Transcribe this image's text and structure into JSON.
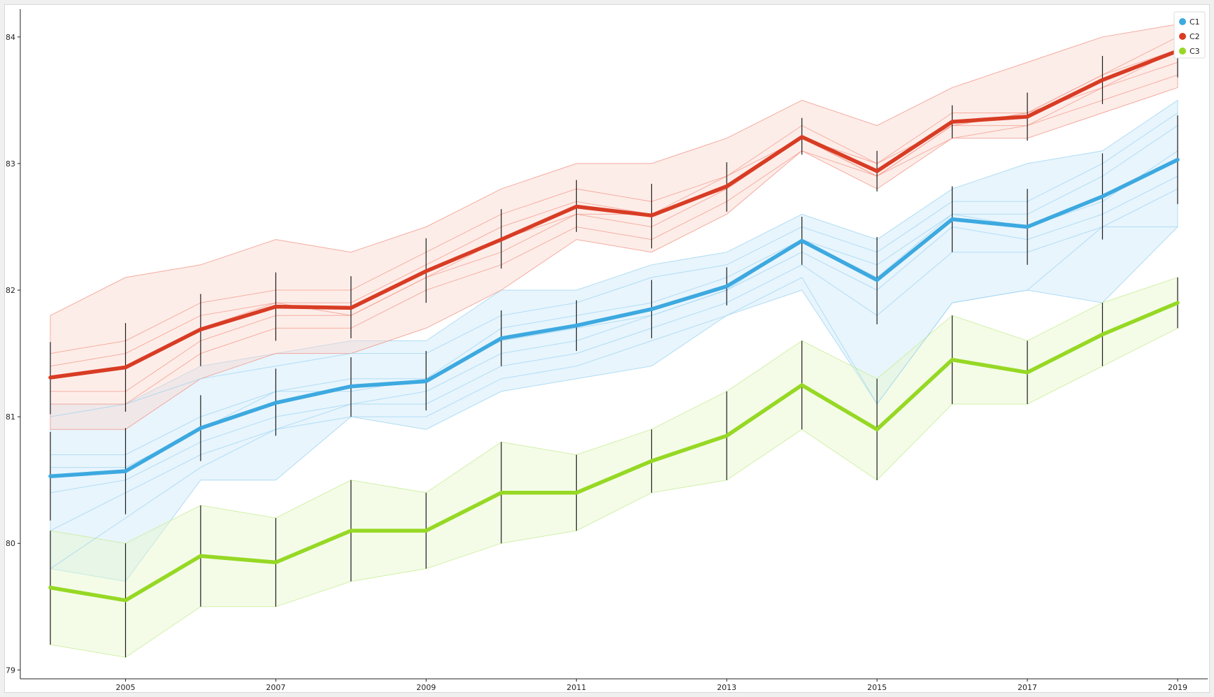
{
  "chart_data": {
    "type": "line",
    "x": [
      2004,
      2005,
      2006,
      2007,
      2008,
      2009,
      2010,
      2011,
      2012,
      2013,
      2014,
      2015,
      2016,
      2017,
      2018,
      2019
    ],
    "xticks": [
      2005,
      2007,
      2009,
      2011,
      2013,
      2015,
      2017,
      2019
    ],
    "xtick_labels": [
      "2005",
      "2007",
      "2009",
      "2011",
      "2013",
      "2015",
      "2017",
      "2019"
    ],
    "yticks": [
      79,
      80,
      81,
      82,
      83,
      84
    ],
    "ytick_labels": [
      "79",
      "80",
      "81",
      "82",
      "83",
      "84"
    ],
    "xlim": [
      2003.6,
      2019.4
    ],
    "ylim": [
      78.93,
      84.22
    ],
    "grid": false,
    "legend_position": "top-right",
    "series": [
      {
        "name": "C1",
        "color": "#3da9e0",
        "fill": "#cde9fa",
        "thin_color": "#9fd4f0",
        "values": [
          80.53,
          80.57,
          80.91,
          81.11,
          81.24,
          81.28,
          81.62,
          81.72,
          81.85,
          82.03,
          82.39,
          82.08,
          82.56,
          82.5,
          82.74,
          83.03
        ],
        "err_low": [
          80.18,
          80.23,
          80.65,
          80.85,
          81.0,
          81.05,
          81.4,
          81.52,
          81.62,
          81.88,
          82.2,
          81.73,
          82.3,
          82.2,
          82.4,
          82.68
        ],
        "err_high": [
          80.88,
          80.91,
          81.17,
          81.38,
          81.47,
          81.52,
          81.84,
          81.92,
          82.08,
          82.18,
          82.58,
          82.42,
          82.82,
          82.8,
          83.08,
          83.38
        ],
        "band_low": [
          79.8,
          79.7,
          80.5,
          80.5,
          81.0,
          80.9,
          81.2,
          81.3,
          81.4,
          81.8,
          82.0,
          81.1,
          81.9,
          82.0,
          81.9,
          82.5
        ],
        "band_high": [
          81.1,
          81.1,
          81.4,
          81.5,
          81.6,
          81.6,
          82.0,
          82.0,
          82.2,
          82.3,
          82.6,
          82.4,
          82.8,
          83.0,
          83.1,
          83.5
        ],
        "members": [
          [
            80.7,
            80.7,
            81.0,
            81.2,
            81.3,
            81.3,
            81.7,
            81.8,
            81.9,
            82.1,
            82.4,
            82.1,
            82.6,
            82.6,
            82.9,
            83.3
          ],
          [
            80.4,
            80.5,
            80.8,
            81.0,
            81.1,
            81.2,
            81.5,
            81.6,
            81.8,
            82.0,
            82.3,
            82.0,
            82.5,
            82.4,
            82.6,
            82.9
          ],
          [
            81.0,
            81.1,
            81.3,
            81.4,
            81.5,
            81.5,
            81.8,
            81.9,
            82.1,
            82.2,
            82.5,
            82.3,
            82.7,
            82.7,
            83.0,
            83.4
          ],
          [
            80.1,
            80.4,
            80.7,
            80.9,
            81.1,
            81.1,
            81.4,
            81.5,
            81.7,
            81.9,
            82.2,
            81.8,
            82.3,
            82.3,
            82.5,
            82.8
          ],
          [
            80.6,
            80.6,
            80.9,
            81.2,
            81.2,
            81.3,
            81.6,
            81.7,
            81.8,
            82.0,
            82.4,
            82.2,
            82.6,
            82.5,
            82.7,
            83.1
          ],
          [
            79.8,
            80.2,
            80.6,
            80.9,
            81.0,
            81.0,
            81.3,
            81.4,
            81.6,
            81.8,
            82.1,
            81.1,
            81.9,
            82.0,
            82.5,
            82.5
          ]
        ]
      },
      {
        "name": "C2",
        "color": "#d83c24",
        "fill": "#fbd6cf",
        "thin_color": "#f1998a",
        "values": [
          81.31,
          81.39,
          81.69,
          81.87,
          81.86,
          82.15,
          82.4,
          82.66,
          82.59,
          82.82,
          83.21,
          82.94,
          83.33,
          83.37,
          83.66,
          83.89
        ],
        "err_low": [
          81.02,
          81.04,
          81.4,
          81.6,
          81.62,
          81.9,
          82.17,
          82.46,
          82.33,
          82.62,
          83.07,
          82.78,
          83.2,
          83.18,
          83.47,
          83.68
        ],
        "err_high": [
          81.59,
          81.74,
          81.97,
          82.14,
          82.11,
          82.41,
          82.64,
          82.87,
          82.84,
          83.01,
          83.36,
          83.1,
          83.46,
          83.56,
          83.85,
          84.06
        ],
        "band_low": [
          80.9,
          80.9,
          81.3,
          81.5,
          81.5,
          81.7,
          82.0,
          82.4,
          82.3,
          82.6,
          83.1,
          82.8,
          83.2,
          83.2,
          83.4,
          83.6
        ],
        "band_high": [
          81.8,
          82.1,
          82.2,
          82.4,
          82.3,
          82.5,
          82.8,
          83.0,
          83.0,
          83.2,
          83.5,
          83.3,
          83.6,
          83.8,
          84.0,
          84.1
        ],
        "members": [
          [
            81.5,
            81.6,
            81.9,
            82.0,
            82.0,
            82.3,
            82.6,
            82.8,
            82.7,
            82.9,
            83.3,
            83.0,
            83.4,
            83.4,
            83.7,
            84.0
          ],
          [
            81.2,
            81.2,
            81.6,
            81.8,
            81.8,
            82.1,
            82.3,
            82.6,
            82.5,
            82.8,
            83.2,
            82.9,
            83.3,
            83.3,
            83.6,
            83.8
          ],
          [
            81.4,
            81.5,
            81.8,
            81.9,
            81.9,
            82.2,
            82.5,
            82.7,
            82.6,
            82.9,
            83.2,
            83.0,
            83.3,
            83.4,
            83.7,
            83.9
          ],
          [
            81.1,
            81.1,
            81.5,
            81.7,
            81.7,
            82.0,
            82.2,
            82.5,
            82.4,
            82.7,
            83.1,
            82.9,
            83.2,
            83.3,
            83.5,
            83.7
          ],
          [
            81.3,
            81.4,
            81.7,
            81.9,
            81.8,
            82.1,
            82.4,
            82.6,
            82.6,
            82.8,
            83.2,
            82.9,
            83.3,
            83.4,
            83.6,
            83.9
          ]
        ]
      },
      {
        "name": "C3",
        "color": "#96d824",
        "fill": "#e6f8cc",
        "thin_color": "#c8ec96",
        "values": [
          79.65,
          79.55,
          79.9,
          79.85,
          80.1,
          80.1,
          80.4,
          80.4,
          80.65,
          80.85,
          81.25,
          80.9,
          81.45,
          81.35,
          81.65,
          81.9
        ],
        "err_low": [
          79.2,
          79.1,
          79.5,
          79.5,
          79.7,
          79.8,
          80.0,
          80.1,
          80.4,
          80.5,
          80.9,
          80.5,
          81.1,
          81.1,
          81.4,
          81.7
        ],
        "err_high": [
          80.1,
          80.0,
          80.3,
          80.2,
          80.5,
          80.4,
          80.8,
          80.7,
          80.9,
          81.2,
          81.6,
          81.3,
          81.8,
          81.6,
          81.9,
          82.1
        ],
        "band_low": [
          79.2,
          79.1,
          79.5,
          79.5,
          79.7,
          79.8,
          80.0,
          80.1,
          80.4,
          80.5,
          80.9,
          80.5,
          81.1,
          81.1,
          81.4,
          81.7
        ],
        "band_high": [
          80.1,
          80.0,
          80.3,
          80.2,
          80.5,
          80.4,
          80.8,
          80.7,
          80.9,
          81.2,
          81.6,
          81.3,
          81.8,
          81.6,
          81.9,
          82.1
        ],
        "members": []
      }
    ]
  }
}
